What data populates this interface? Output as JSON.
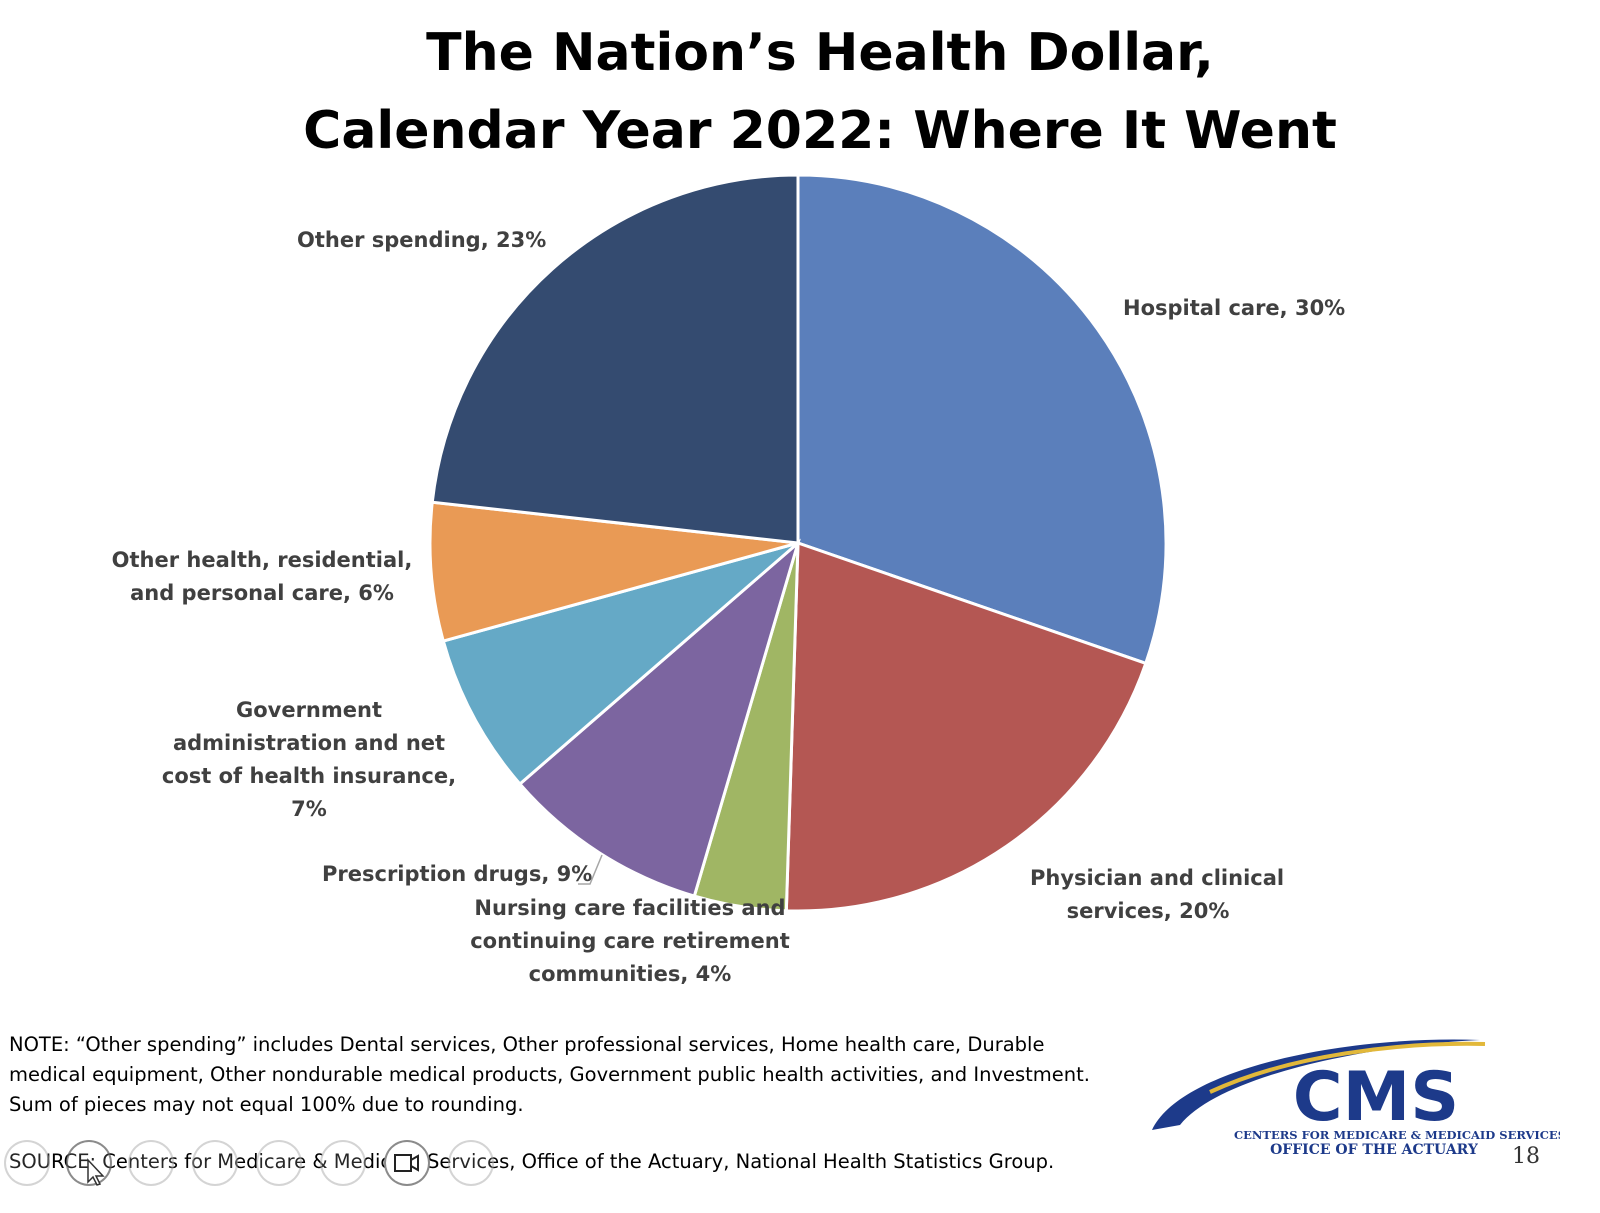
{
  "title": {
    "line1": "The Nation’s Health Dollar,",
    "line2": "Calendar Year 2022: Where It Went"
  },
  "chart_data": {
    "type": "pie",
    "title": "The Nation’s Health Dollar, Calendar Year 2022: Where It Went",
    "slices": [
      {
        "label": "Hospital care",
        "value": 30,
        "color": "#5b7fbb",
        "text": [
          "Hospital care, 30%"
        ]
      },
      {
        "label": "Physician and clinical services",
        "value": 20,
        "color": "#b45753",
        "text": [
          "Physician and clinical",
          "services, 20%"
        ]
      },
      {
        "label": "Nursing care facilities and continuing care retirement communities",
        "value": 4,
        "color": "#a0b664",
        "text": [
          "Nursing care facilities and",
          "continuing care retirement",
          "communities, 4%"
        ]
      },
      {
        "label": "Prescription drugs",
        "value": 9,
        "color": "#7c65a0",
        "text": [
          "Prescription drugs, 9%"
        ]
      },
      {
        "label": "Government administration and net cost of health insurance",
        "value": 7,
        "color": "#65a9c6",
        "text": [
          "Government",
          "administration and net",
          "cost of health insurance,",
          "7%"
        ]
      },
      {
        "label": "Other health, residential, and personal care",
        "value": 6,
        "color": "#e99a55",
        "text": [
          "Other health, residential,",
          "and personal care, 6%"
        ]
      },
      {
        "label": "Other spending",
        "value": 23,
        "color": "#344b70",
        "text": [
          "Other spending, 23%"
        ]
      }
    ],
    "start_angle_deg": 0,
    "direction": "clockwise",
    "legend": "none"
  },
  "note": {
    "lines": [
      "NOTE:  “Other spending” includes Dental services, Other professional services, Home health care, Durable",
      "medical equipment, Other nondurable medical products, Government public health activities, and Investment.",
      "Sum of pieces may not equal 100% due to rounding."
    ]
  },
  "source": {
    "text": "SOURCE: Centers for Medicare & Medicaid Services, Office of the Actuary, National Health Statistics Group."
  },
  "logo": {
    "wordmark": "CMS",
    "line1": "CENTERS FOR MEDICARE & MEDICAID SERVICES",
    "line2": "OFFICE OF THE ACTUARY",
    "colors": {
      "navy": "#1d3a8a",
      "gold": "#e2b83a"
    }
  },
  "page_number": "18",
  "toolbar": {
    "icons": [
      "previous-icon",
      "pointer-icon",
      "pen-icon",
      "slides-icon",
      "zoom-icon",
      "subtitles-icon",
      "camera-icon",
      "more-icon"
    ]
  }
}
